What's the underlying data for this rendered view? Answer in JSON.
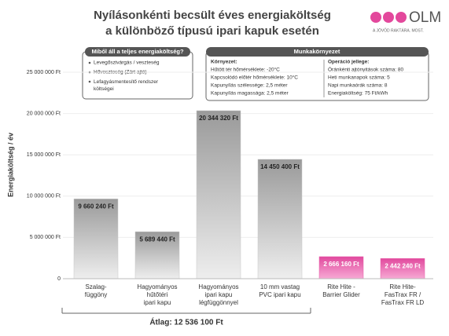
{
  "chart_data": {
    "type": "bar",
    "title": [
      "Nyílásonkénti becsült éves energiaköltség",
      "a különböző típusú ipari kapuk esetén"
    ],
    "ylabel": "Energiaköltség / év",
    "categories": [
      "Szalag-\nfüggöny",
      "Hagyományos\nhűtőtéri\nipari kapu",
      "Hagyományos\nipari kapu\nlégfüggönnyel",
      "10 mm vastag\nPVC ipari kapu",
      "Rite Hite -\nBarrier Glider",
      "Rite Hite-\nFasTrax FR /\nFasTrax FR LD"
    ],
    "values": [
      9660240,
      5689440,
      20344320,
      14450400,
      2666160,
      2442240
    ],
    "value_labels": [
      "9 660 240 Ft",
      "5 689 440 Ft",
      "20 344 320 Ft",
      "14 450 400 Ft",
      "2 666 160 Ft",
      "2 442 240 Ft"
    ],
    "colors": [
      "#c8c8c8",
      "#c8c8c8",
      "#c8c8c8",
      "#c8c8c8",
      "#e85aa8",
      "#e85aa8"
    ],
    "ylim": [
      0,
      25000000
    ],
    "yticks": [
      0,
      {
        "value": 5000000,
        "label": "5 000 000 Ft"
      },
      {
        "value": 10000000,
        "label": "10 000 000 Ft"
      },
      {
        "value": 15000000,
        "label": "15 000 000 Ft"
      },
      {
        "value": 20000000,
        "label": "20 000 000 Ft"
      },
      {
        "value": 25000000,
        "label": "25 000 000 Ft"
      }
    ],
    "grid": true,
    "annotation": "Átlag: 12 536 100 Ft"
  },
  "logo": {
    "brand": "OLM",
    "tagline": "A JÖVŐD RAKTÁRA. MOST."
  },
  "cost_box": {
    "title": "Miből áll a teljes energiaköltség?",
    "items": [
      "Levegőszivárgás / veszteség",
      "Hőveszteség (Zárt ajtó)",
      "Lefagyásmentesítő rendszer\nköltségei"
    ]
  },
  "env_box": {
    "title": "Munkakörnyezet",
    "left_title": "Környezet:",
    "left": [
      "Hűtött tér hőmérséklete: -20°C",
      "Kapcsolódó előtér hőmérséklete: 10°C",
      "Kapunyílás szélessége: 2,5 méter",
      "Kapunyílás magassága: 2,5 méter"
    ],
    "right_title": "Operáció jellege:",
    "right": [
      "Óránkénti ajtónyitások száma: 80",
      "Heti munkanapok száma: 5",
      "Napi munkaórák száma: 8",
      "Energiaköltség: 75 Ft/kWh"
    ]
  }
}
